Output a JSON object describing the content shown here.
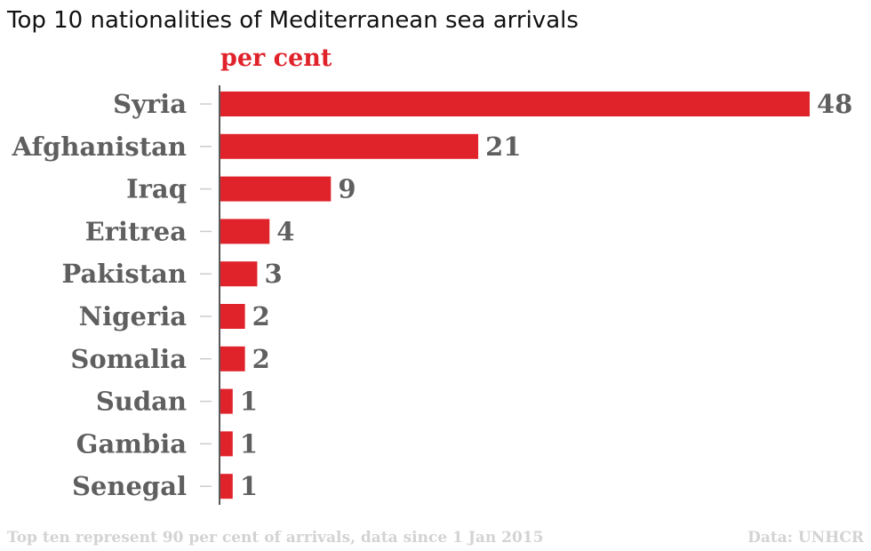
{
  "chart_data": {
    "type": "bar",
    "orientation": "horizontal",
    "title": "Top 10 nationalities of Mediterranean sea arrivals",
    "unit_label": "per cent",
    "categories": [
      "Syria",
      "Afghanistan",
      "Iraq",
      "Eritrea",
      "Pakistan",
      "Nigeria",
      "Somalia",
      "Sudan",
      "Gambia",
      "Senegal"
    ],
    "values": [
      48,
      21,
      9,
      4,
      3,
      2,
      2,
      1,
      1,
      1
    ],
    "xlim": [
      0,
      48
    ],
    "grid": false,
    "legend": "none",
    "footnote": "Top ten represent 90 per cent of arrivals, data since 1 Jan 2015",
    "source": "Data: UNHCR"
  },
  "colors": {
    "bar": "#e0232b",
    "unit_label": "#e0232b",
    "labels": "#5f5f5f",
    "footer": "#d3d3d3",
    "axis": "#222222",
    "tick": "#cccccc"
  }
}
